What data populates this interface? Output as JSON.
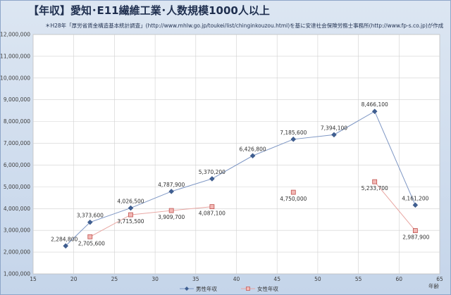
{
  "chart_data": {
    "type": "scatter",
    "title": "【年収】愛知･E11繊維工業･人数規模1000人以上",
    "subtitle": "＊H28年「厚労省賃金構造基本統計調査」(http://www.mhlw.go.jp/toukei/list/chinginkouzou.html)を基に安達社会保険労務士事務所(http://www.fp-s.co.jp)が作成",
    "xlabel": "年齢",
    "ylabel": "",
    "xlim": [
      15,
      65
    ],
    "ylim": [
      1000000,
      12000000
    ],
    "xticks": [
      15,
      20,
      25,
      30,
      35,
      40,
      45,
      50,
      55,
      60,
      65
    ],
    "yticks": [
      1000000,
      2000000,
      3000000,
      4000000,
      5000000,
      6000000,
      7000000,
      8000000,
      9000000,
      10000000,
      11000000,
      12000000
    ],
    "grid": true,
    "legend": "bottom",
    "series": [
      {
        "name": "男性年収",
        "color": "#4a6fa5",
        "marker": "diamond",
        "segments": [
          [
            0,
            1,
            2,
            3,
            4,
            5,
            6,
            7,
            8,
            9
          ]
        ],
        "points": [
          {
            "x": 19,
            "y": 2284800,
            "label": "2,284,800"
          },
          {
            "x": 22,
            "y": 3373600,
            "label": "3,373,600"
          },
          {
            "x": 27,
            "y": 4026500,
            "label": "4,026,500"
          },
          {
            "x": 32,
            "y": 4787900,
            "label": "4,787,900"
          },
          {
            "x": 37,
            "y": 5370200,
            "label": "5,370,200"
          },
          {
            "x": 42,
            "y": 6426800,
            "label": "6,426,800"
          },
          {
            "x": 47,
            "y": 7185600,
            "label": "7,185,600"
          },
          {
            "x": 52,
            "y": 7394100,
            "label": "7,394,100"
          },
          {
            "x": 57,
            "y": 8466100,
            "label": "8,466,100"
          },
          {
            "x": 62,
            "y": 4161200,
            "label": "4,161,200"
          }
        ]
      },
      {
        "name": "女性年収",
        "color": "#d9544f",
        "marker": "square",
        "segments": [
          [
            0,
            1,
            2,
            3
          ],
          [
            5,
            6
          ]
        ],
        "points": [
          {
            "x": 22,
            "y": 2705600,
            "label": "2,705,600"
          },
          {
            "x": 27,
            "y": 3715500,
            "label": "3,715,500"
          },
          {
            "x": 32,
            "y": 3909700,
            "label": "3,909,700"
          },
          {
            "x": 37,
            "y": 4087100,
            "label": "4,087,100"
          },
          {
            "x": 47,
            "y": 4750000,
            "label": "4,750,000"
          },
          {
            "x": 57,
            "y": 5233700,
            "label": "5,233,700"
          },
          {
            "x": 62,
            "y": 2987900,
            "label": "2,987,900"
          }
        ]
      }
    ]
  }
}
